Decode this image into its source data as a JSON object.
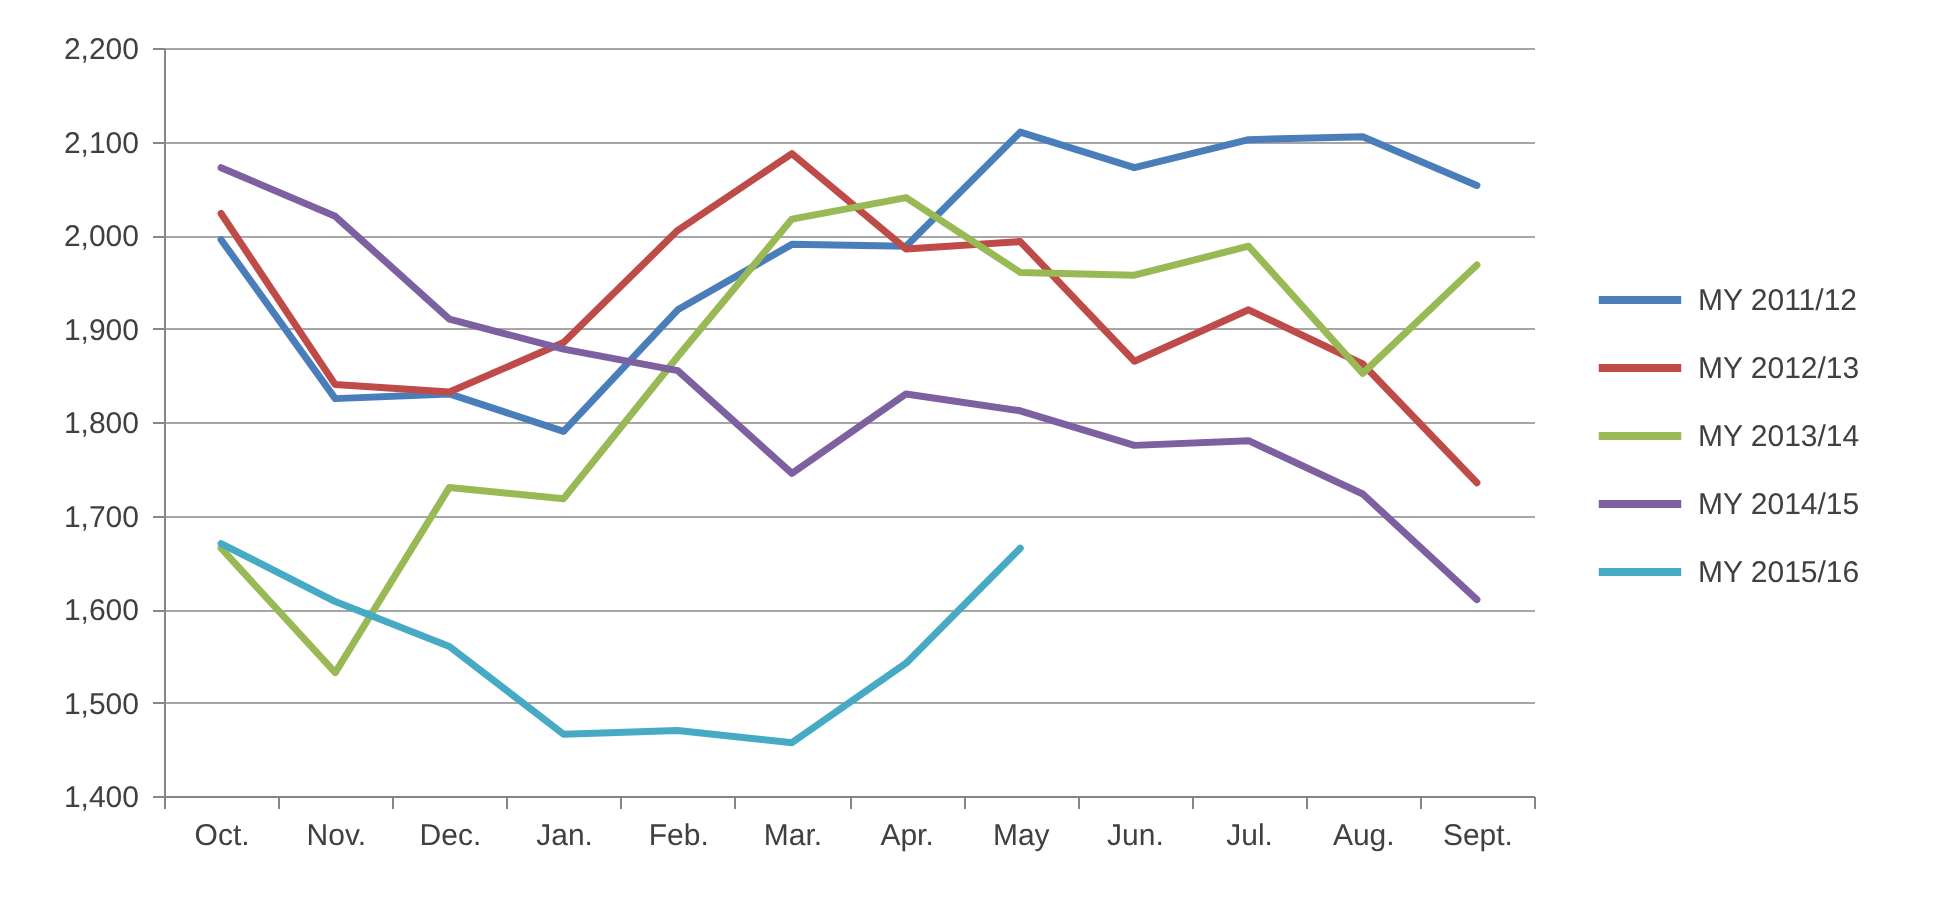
{
  "chart_data": {
    "type": "line",
    "categories": [
      "Oct.",
      "Nov.",
      "Dec.",
      "Jan.",
      "Feb.",
      "Mar.",
      "Apr.",
      "May",
      "Jun.",
      "Jul.",
      "Aug.",
      "Sept."
    ],
    "series": [
      {
        "name": "MY 2011/12",
        "color": "#4a7ebb",
        "values": [
          1995,
          1825,
          1830,
          1790,
          1920,
          1990,
          1988,
          2110,
          2072,
          2102,
          2105,
          2053
        ]
      },
      {
        "name": "MY 2012/13",
        "color": "#be4b48",
        "values": [
          2023,
          1840,
          1832,
          1885,
          2005,
          2087,
          1985,
          1993,
          1865,
          1920,
          1862,
          1735
        ]
      },
      {
        "name": "MY 2013/14",
        "color": "#98b954",
        "values": [
          1665,
          1532,
          1730,
          1718,
          1870,
          2017,
          2040,
          1960,
          1957,
          1988,
          1852,
          1968
        ]
      },
      {
        "name": "MY 2014/15",
        "color": "#7d60a0",
        "values": [
          2072,
          2020,
          1910,
          1878,
          1855,
          1745,
          1830,
          1812,
          1775,
          1780,
          1723,
          1610
        ]
      },
      {
        "name": "MY 2015/16",
        "color": "#46aac5",
        "values": [
          1670,
          1608,
          1560,
          1466,
          1470,
          1457,
          1542,
          1665,
          null,
          null,
          null,
          null
        ]
      }
    ],
    "ylim": [
      1400,
      2200
    ],
    "yticks": [
      {
        "value": 1400,
        "label": "1,400"
      },
      {
        "value": 1500,
        "label": "1,500"
      },
      {
        "value": 1600,
        "label": "1,600"
      },
      {
        "value": 1700,
        "label": "1,700"
      },
      {
        "value": 1800,
        "label": "1,800"
      },
      {
        "value": 1900,
        "label": "1,900"
      },
      {
        "value": 2000,
        "label": "2,000"
      },
      {
        "value": 2100,
        "label": "2,100"
      },
      {
        "value": 2200,
        "label": "2,200"
      }
    ],
    "grid": "y",
    "legend": "right"
  }
}
